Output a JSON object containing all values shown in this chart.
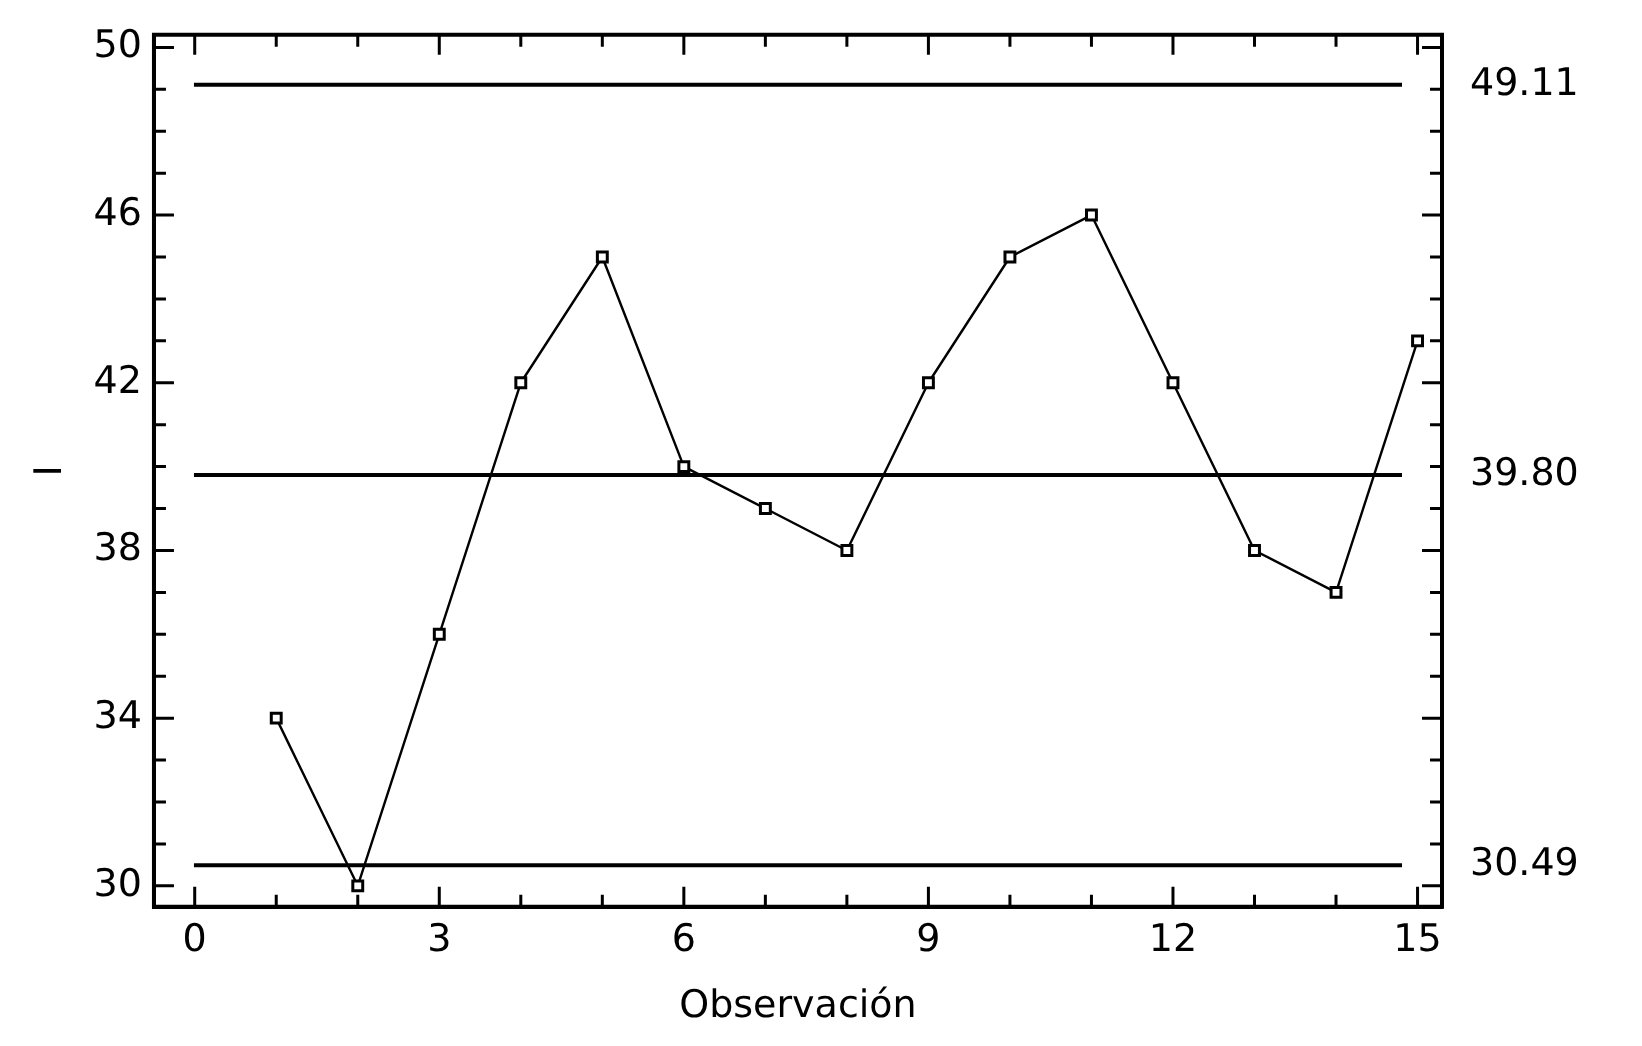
{
  "chart_data": {
    "type": "line",
    "xlabel": "Observación",
    "ylabel": "I",
    "x": [
      1,
      2,
      3,
      4,
      5,
      6,
      7,
      8,
      9,
      10,
      11,
      12,
      13,
      14,
      15
    ],
    "values": [
      34,
      30,
      36,
      42,
      45,
      40,
      39,
      38,
      42,
      45,
      46,
      42,
      38,
      37,
      43
    ],
    "color": "#000000",
    "marker": "square",
    "line_style": "solid",
    "grid": false,
    "legend": false,
    "xlim": [
      -0.5,
      15.3
    ],
    "ylim": [
      29.5,
      50.3
    ],
    "xticks": [
      0,
      {
        "value": 1,
        "label": null
      },
      {
        "value": 2,
        "label": null
      },
      3,
      {
        "value": 4,
        "label": null
      },
      {
        "value": 5,
        "label": null
      },
      6,
      {
        "value": 7,
        "label": null
      },
      {
        "value": 8,
        "label": null
      },
      9,
      {
        "value": 10,
        "label": null
      },
      {
        "value": 11,
        "label": null
      },
      12,
      {
        "value": 13,
        "label": null
      },
      {
        "value": 14,
        "label": null
      },
      15
    ],
    "yticks": [
      30,
      {
        "value": 31,
        "label": null
      },
      {
        "value": 32,
        "label": null
      },
      {
        "value": 33,
        "label": null
      },
      34,
      {
        "value": 35,
        "label": null
      },
      {
        "value": 36,
        "label": null
      },
      {
        "value": 37,
        "label": null
      },
      38,
      {
        "value": 39,
        "label": null
      },
      {
        "value": 40,
        "label": null
      },
      {
        "value": 41,
        "label": null
      },
      42,
      {
        "value": 43,
        "label": null
      },
      {
        "value": 44,
        "label": null
      },
      {
        "value": 45,
        "label": null
      },
      46,
      {
        "value": 47,
        "label": null
      },
      {
        "value": 48,
        "label": null
      },
      {
        "value": 49,
        "label": null
      },
      50
    ],
    "ref_lines": [
      {
        "axis": "y",
        "value": 49.11,
        "label": "49.11"
      },
      {
        "axis": "y",
        "value": 39.8,
        "label": "39.80"
      },
      {
        "axis": "y",
        "value": 30.49,
        "label": "30.49"
      }
    ]
  }
}
